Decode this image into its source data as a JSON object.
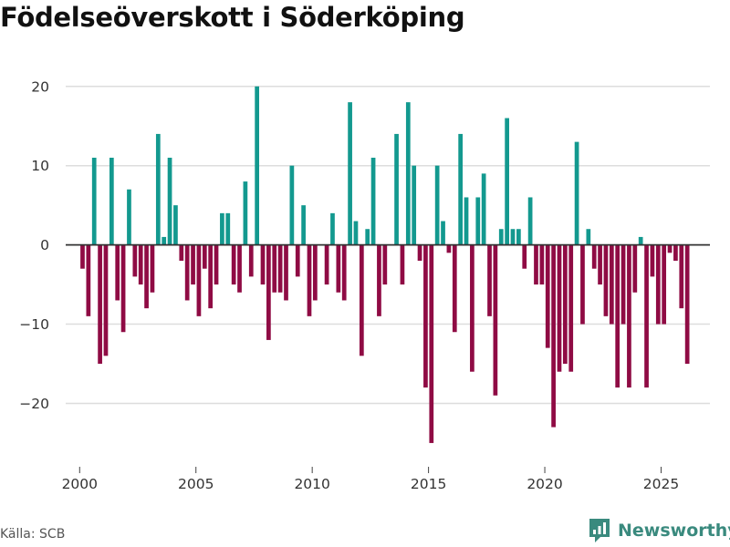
{
  "title": "Födelseöverskott i Söderköping",
  "source": "Källa: SCB",
  "brand": "Newsworthy",
  "colors": {
    "positive": "#13998f",
    "negative": "#8f0b44",
    "grid": "#dddddd",
    "zero": "#333333",
    "brand": "#3a8a7e"
  },
  "chart_data": {
    "type": "bar",
    "title": "Födelseöverskott i Söderköping",
    "xlabel": "",
    "ylabel": "",
    "ylim": [
      -28,
      24
    ],
    "xlim": [
      1999.4,
      2027.1
    ],
    "y_ticks": [
      20,
      10,
      0,
      -10,
      -20
    ],
    "y_tick_labels": [
      "20",
      "10",
      "0",
      "−10",
      "−20"
    ],
    "x_ticks": [
      2000,
      2005,
      2010,
      2015,
      2020,
      2025
    ],
    "x_tick_labels": [
      "2000",
      "2005",
      "2010",
      "2015",
      "2020",
      "2025"
    ],
    "grid": true,
    "bar_step": 0.25,
    "x_start": 2000.125,
    "values": [
      -3,
      -9,
      11,
      -15,
      -14,
      11,
      -7,
      -11,
      7,
      -4,
      -5,
      -8,
      -6,
      14,
      1,
      11,
      5,
      -2,
      -7,
      -5,
      -9,
      -3,
      -8,
      -5,
      4,
      4,
      -5,
      -6,
      8,
      -4,
      20,
      -5,
      -12,
      -6,
      -6,
      -7,
      10,
      -4,
      5,
      -9,
      -7,
      0,
      -5,
      4,
      -6,
      -7,
      18,
      3,
      -14,
      2,
      11,
      -9,
      -5,
      0,
      14,
      -5,
      18,
      10,
      -2,
      -18,
      -25,
      10,
      3,
      -1,
      -11,
      14,
      6,
      -16,
      6,
      9,
      -9,
      -19,
      2,
      16,
      2,
      2,
      -3,
      6,
      -5,
      -5,
      -13,
      -23,
      -16,
      -15,
      -16,
      13,
      -10,
      2,
      -3,
      -5,
      -9,
      -10,
      -18,
      -10,
      -18,
      -6,
      1,
      -18,
      -4,
      -10,
      -10,
      -1,
      -2,
      -8,
      -15
    ]
  }
}
